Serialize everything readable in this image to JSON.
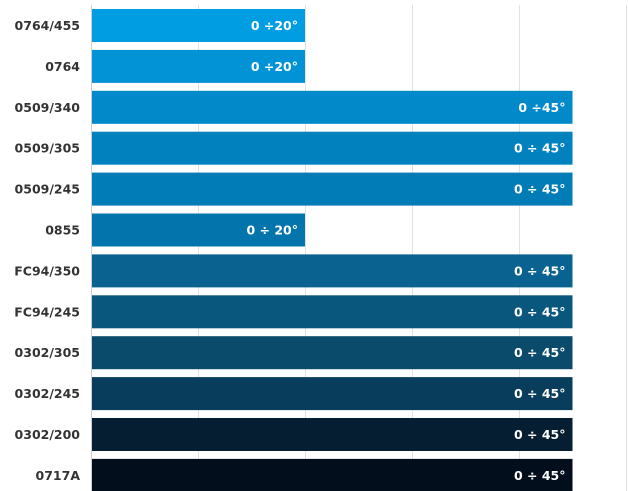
{
  "chart_data": {
    "type": "bar",
    "orientation": "horizontal",
    "categories": [
      "0764/455",
      "0764",
      "0509/340",
      "0509/305",
      "0509/245",
      "0855",
      "FC94/350",
      "FC94/245",
      "0302/305",
      "0302/245",
      "0302/200",
      "0717A"
    ],
    "values": [
      20,
      20,
      45,
      45,
      45,
      20,
      45,
      45,
      45,
      45,
      45,
      45
    ],
    "data_labels": [
      "0 ÷20°",
      "0 ÷20°",
      "0 ÷45°",
      "0 ÷ 45°",
      "0 ÷ 45°",
      "0 ÷ 20°",
      "0 ÷ 45°",
      "0 ÷ 45°",
      "0 ÷ 45°",
      "0 ÷ 45°",
      "0 ÷ 45°",
      "0 ÷ 45°"
    ],
    "colors": [
      "#019de2",
      "#0193d6",
      "#0189c9",
      "#0182bf",
      "#027cb6",
      "#0375ac",
      "#0a6291",
      "#0a577e",
      "#0a4a6b",
      "#083d5b",
      "#051e31",
      "#020e1c"
    ],
    "xlim": [
      0,
      50
    ],
    "grid": true,
    "title": "",
    "xlabel": "",
    "ylabel": ""
  }
}
